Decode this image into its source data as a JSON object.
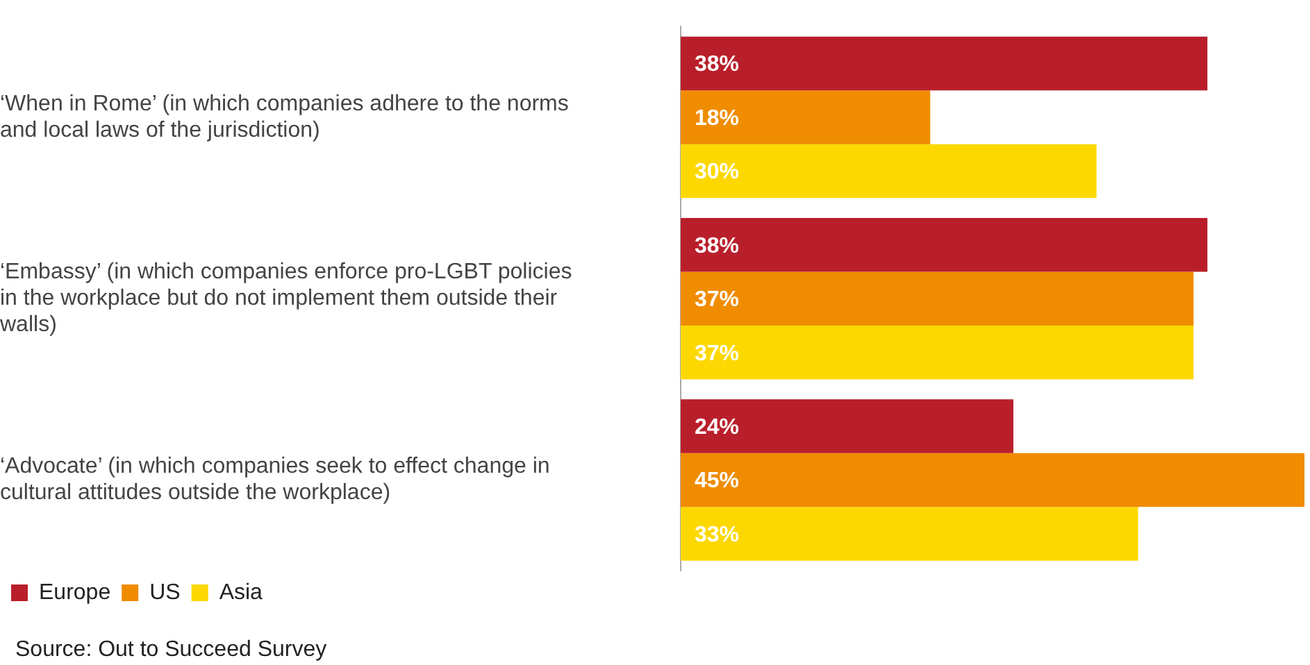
{
  "chart_data": {
    "type": "bar",
    "orientation": "horizontal",
    "categories": [
      "‘When in Rome’ (in which companies adhere to the norms and local laws of the jurisdiction)",
      "‘Embassy’ (in which companies enforce pro-LGBT policies in the workplace but do not implement them outside their walls)",
      "‘Advocate’ (in which companies seek to effect change in cultural attitudes outside the workplace)"
    ],
    "series": [
      {
        "name": "Europe",
        "color": "#b91f2b",
        "values": [
          38,
          38,
          24
        ],
        "value_labels": [
          "38%",
          "38%",
          "24%"
        ]
      },
      {
        "name": "US",
        "color": "#f08c00",
        "values": [
          18,
          37,
          45
        ],
        "value_labels": [
          "18%",
          "37%",
          "45%"
        ]
      },
      {
        "name": "Asia",
        "color": "#fcd800",
        "values": [
          30,
          37,
          33
        ],
        "value_labels": [
          "30%",
          "37%",
          "33%"
        ]
      }
    ],
    "tick_labels": "y",
    "legend": "bottom left",
    "annotations": [
      "Source: Out to Succeed Survey"
    ]
  }
}
